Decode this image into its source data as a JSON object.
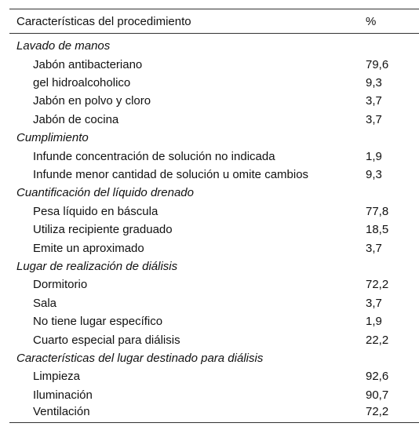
{
  "table": {
    "header": {
      "characteristic": "Características del procedimiento",
      "percent": "%"
    },
    "sections": [
      {
        "title": "Lavado de manos",
        "rows": [
          {
            "label": "Jabón antibacteriano",
            "value": "79,6"
          },
          {
            "label": "gel hidroalcoholico",
            "value": "9,3"
          },
          {
            "label": "Jabón en polvo y cloro",
            "value": "3,7"
          },
          {
            "label": "Jabón de cocina",
            "value": "3,7"
          }
        ]
      },
      {
        "title": "Cumplimiento",
        "rows": [
          {
            "label": "Infunde concentración de solución no indicada",
            "value": "1,9"
          },
          {
            "label": "Infunde menor cantidad de solución u omite cambios",
            "value": "9,3"
          }
        ]
      },
      {
        "title": "Cuantificación del líquido drenado",
        "rows": [
          {
            "label": "Pesa líquido en báscula",
            "value": "77,8"
          },
          {
            "label": "Utiliza recipiente graduado",
            "value": "18,5"
          },
          {
            "label": "Emite un aproximado",
            "value": "3,7"
          }
        ]
      },
      {
        "title": "Lugar de realización de diálisis",
        "rows": [
          {
            "label": "Dormitorio",
            "value": "72,2"
          },
          {
            "label": "Sala",
            "value": "3,7"
          },
          {
            "label": "No tiene lugar específico",
            "value": "1,9"
          },
          {
            "label": "Cuarto especial para diálisis",
            "value": "22,2"
          }
        ]
      },
      {
        "title": "Características del lugar destinado para diálisis",
        "rows": [
          {
            "label": "Limpieza",
            "value": "92,6"
          },
          {
            "label": "Iluminación",
            "value": "90,7"
          },
          {
            "label": "Ventilación",
            "value": "72,2"
          }
        ]
      }
    ]
  }
}
